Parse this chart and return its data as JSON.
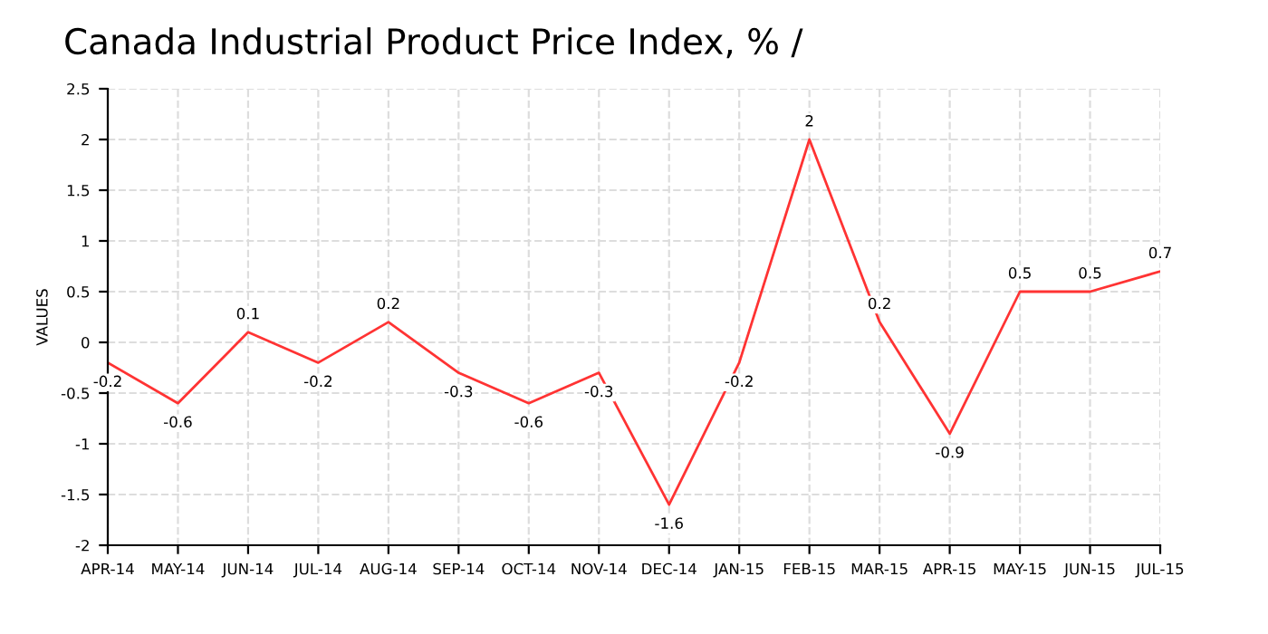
{
  "chart_data": {
    "type": "line",
    "title": "Canada Industrial Product Price Index, % /",
    "ylabel": "VALUES",
    "categories": [
      "APR-14",
      "MAY-14",
      "JUN-14",
      "JUL-14",
      "AUG-14",
      "SEP-14",
      "OCT-14",
      "NOV-14",
      "DEC-14",
      "JAN-15",
      "FEB-15",
      "MAR-15",
      "APR-15",
      "MAY-15",
      "JUN-15",
      "JUL-15"
    ],
    "series": [
      {
        "color": "#ff3333",
        "values": [
          -0.2,
          -0.6,
          0.1,
          -0.2,
          0.2,
          -0.3,
          -0.6,
          -0.3,
          -1.6,
          -0.2,
          2,
          0.2,
          -0.9,
          0.5,
          0.5,
          0.7
        ]
      }
    ],
    "ylim": [
      -2,
      2.5
    ],
    "yticks": [
      -2,
      -1.5,
      -1,
      -0.5,
      0,
      0.5,
      1,
      1.5,
      2,
      2.5
    ],
    "grid": true,
    "data_labels": true,
    "marker": "none",
    "line_style": "solid"
  }
}
